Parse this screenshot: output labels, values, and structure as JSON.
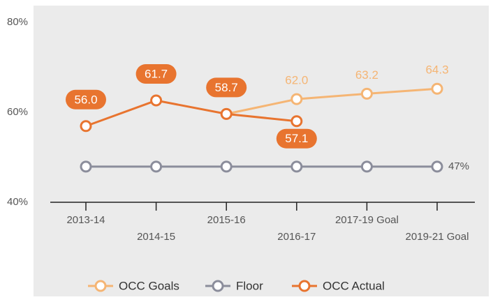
{
  "chart_data": {
    "type": "line",
    "categories": [
      "2013-14",
      "2014-15",
      "2015-16",
      "2016-17",
      "2017-19 Goal",
      "2019-21 Goal"
    ],
    "series": [
      {
        "name": "OCC Goals",
        "color": "#f5b574",
        "values": [
          null,
          null,
          58.7,
          62.0,
          63.2,
          64.3
        ],
        "value_labels": [
          null,
          null,
          null,
          "62.0",
          "63.2",
          "64.3"
        ]
      },
      {
        "name": "Floor",
        "color": "#8b8d9b",
        "values": [
          47,
          47,
          47,
          47,
          47,
          47
        ],
        "value_labels": [
          null,
          null,
          null,
          null,
          null,
          "47%"
        ]
      },
      {
        "name": "OCC Actual",
        "color": "#e8742f",
        "values": [
          56.0,
          61.7,
          58.7,
          57.1,
          null,
          null
        ],
        "value_labels": [
          "56.0",
          "61.7",
          "58.7",
          "57.1",
          null,
          null
        ]
      }
    ],
    "ylim": [
      40,
      80
    ],
    "yticks": [
      {
        "value": 40,
        "label": "40%"
      },
      {
        "value": 60,
        "label": "60%"
      },
      {
        "value": 80,
        "label": "80%"
      }
    ],
    "grid": false,
    "legend": "bottom"
  }
}
